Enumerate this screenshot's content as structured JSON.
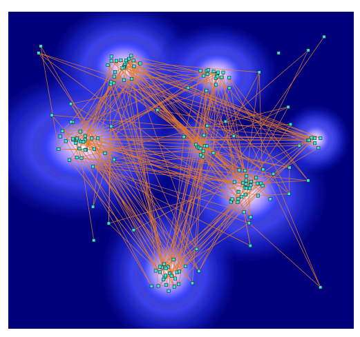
{
  "figure": {
    "kind": "network-on-density-map",
    "colors": {
      "background": "#00007a",
      "density_outer": "#0000d8",
      "density_mid": "#4a6cff",
      "density_inner": "#b8a8ff",
      "density_core": "#ffffff",
      "edge": "#e07a2e",
      "node_fill": "#40e0d0",
      "node_stroke": "#0a2a2a"
    },
    "clusters": [
      {
        "id": "top-left",
        "nodes": 24
      },
      {
        "id": "top-right",
        "nodes": 16
      },
      {
        "id": "left",
        "nodes": 30
      },
      {
        "id": "center",
        "nodes": 10
      },
      {
        "id": "right",
        "nodes": 26
      },
      {
        "id": "bottom",
        "nodes": 22
      },
      {
        "id": "far-right",
        "nodes": 6
      }
    ],
    "edge_count": 260,
    "scattered_nodes": 40
  }
}
